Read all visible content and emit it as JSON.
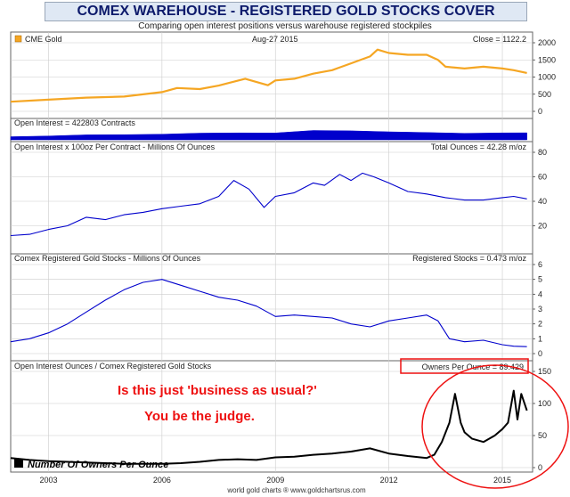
{
  "header": {
    "title": "COMEX WAREHOUSE - REGISTERED GOLD STOCKS COVER",
    "subtitle": "Comparing open interest positions versus warehouse registered stockpiles"
  },
  "footer": {
    "credit": "world gold charts ® www.goldchartsrus.com"
  },
  "colors": {
    "gold": "#f5a623",
    "blue": "#0000cc",
    "black": "#000000",
    "red": "#ee1111",
    "grid": "#cccccc",
    "frame": "#666666"
  },
  "chart_data": [
    {
      "type": "line",
      "legend": "CME Gold",
      "date_label": "Aug-27 2015",
      "value_label": "Close = 1122.2",
      "ylim": [
        0,
        2000
      ],
      "yticks": [
        "0",
        "500",
        "1000",
        "1500",
        "2000"
      ],
      "x": [
        2002.0,
        2003.0,
        2004.0,
        2005.0,
        2006.0,
        2006.4,
        2007.0,
        2007.5,
        2008.2,
        2008.8,
        2009.0,
        2009.5,
        2010.0,
        2010.5,
        2011.0,
        2011.5,
        2011.7,
        2012.0,
        2012.5,
        2013.0,
        2013.3,
        2013.5,
        2014.0,
        2014.5,
        2015.0,
        2015.3,
        2015.65
      ],
      "values": [
        280,
        340,
        400,
        430,
        560,
        680,
        650,
        750,
        950,
        760,
        900,
        950,
        1100,
        1200,
        1400,
        1600,
        1800,
        1700,
        1650,
        1650,
        1500,
        1300,
        1250,
        1300,
        1250,
        1200,
        1120
      ]
    },
    {
      "type": "area",
      "legend": "Open Interest = 422803 Contracts",
      "x": [
        2002.0,
        2003.0,
        2004.0,
        2005.0,
        2006.0,
        2007.0,
        2008.0,
        2009.0,
        2010.0,
        2011.0,
        2012.0,
        2013.0,
        2014.0,
        2015.0,
        2015.65
      ],
      "values": [
        190000,
        230000,
        300000,
        310000,
        340000,
        400000,
        420000,
        410000,
        560000,
        540000,
        480000,
        440000,
        390000,
        420000,
        422803
      ],
      "ylim": [
        0,
        750000
      ]
    },
    {
      "type": "line",
      "legend": "Open Interest x 100oz Per Contract - Millions Of Ounces",
      "value_label": "Total Ounces = 42.28 m/oz",
      "ylim": [
        0,
        80
      ],
      "yticks": [
        "20",
        "40",
        "60",
        "80"
      ],
      "x": [
        2002.0,
        2002.5,
        2003.0,
        2003.5,
        2004.0,
        2004.5,
        2005.0,
        2005.5,
        2006.0,
        2006.5,
        2007.0,
        2007.5,
        2007.9,
        2008.3,
        2008.7,
        2009.0,
        2009.5,
        2010.0,
        2010.3,
        2010.7,
        2011.0,
        2011.3,
        2011.6,
        2012.0,
        2012.5,
        2013.0,
        2013.5,
        2014.0,
        2014.5,
        2015.0,
        2015.3,
        2015.65
      ],
      "values": [
        12,
        13,
        17,
        20,
        27,
        25,
        29,
        31,
        34,
        36,
        38,
        44,
        57,
        50,
        35,
        44,
        47,
        55,
        53,
        62,
        57,
        63,
        60,
        55,
        48,
        46,
        43,
        41,
        41,
        43,
        44,
        42
      ]
    },
    {
      "type": "line",
      "legend": "Comex Registered Gold Stocks - Millions Of Ounces",
      "value_label": "Registered Stocks = 0.473 m/oz",
      "ylim": [
        0,
        6
      ],
      "yticks": [
        "0",
        "1",
        "2",
        "3",
        "4",
        "5",
        "6"
      ],
      "x": [
        2002.0,
        2002.5,
        2003.0,
        2003.5,
        2004.0,
        2004.5,
        2005.0,
        2005.5,
        2006.0,
        2006.5,
        2007.0,
        2007.5,
        2008.0,
        2008.5,
        2009.0,
        2009.5,
        2010.0,
        2010.5,
        2011.0,
        2011.5,
        2012.0,
        2012.5,
        2013.0,
        2013.3,
        2013.6,
        2014.0,
        2014.5,
        2015.0,
        2015.3,
        2015.65
      ],
      "values": [
        0.8,
        1.0,
        1.4,
        2.0,
        2.8,
        3.6,
        4.3,
        4.8,
        5.0,
        4.6,
        4.2,
        3.8,
        3.6,
        3.2,
        2.5,
        2.6,
        2.5,
        2.4,
        2.0,
        1.8,
        2.2,
        2.4,
        2.6,
        2.2,
        1.0,
        0.8,
        0.9,
        0.6,
        0.5,
        0.47
      ]
    },
    {
      "type": "line",
      "legend": "Open Interest Ounces / Comex Registered Gold Stocks",
      "value_label": "Owners Per Ounce = 89.429",
      "series_label": "Number Of Owners Per Ounce",
      "ylim": [
        0,
        150
      ],
      "yticks": [
        "0",
        "50",
        "100",
        "150"
      ],
      "x": [
        2002.0,
        2002.5,
        2003.0,
        2003.5,
        2004.0,
        2004.5,
        2005.0,
        2005.5,
        2006.0,
        2006.5,
        2007.0,
        2007.5,
        2008.0,
        2008.5,
        2009.0,
        2009.5,
        2010.0,
        2010.5,
        2011.0,
        2011.5,
        2012.0,
        2012.5,
        2013.0,
        2013.2,
        2013.4,
        2013.6,
        2013.75,
        2013.9,
        2014.0,
        2014.2,
        2014.5,
        2014.8,
        2015.0,
        2015.15,
        2015.3,
        2015.4,
        2015.5,
        2015.65
      ],
      "values": [
        15,
        12,
        10,
        9,
        8,
        7,
        6,
        6,
        6,
        7,
        9,
        12,
        13,
        12,
        16,
        17,
        20,
        22,
        25,
        30,
        22,
        18,
        15,
        20,
        40,
        70,
        115,
        70,
        55,
        45,
        40,
        50,
        60,
        70,
        120,
        75,
        115,
        89
      ],
      "annotations": [
        "Is this just 'business as usual?'",
        "You be the judge."
      ]
    }
  ],
  "x_axis": {
    "ticks": [
      "2003",
      "2006",
      "2009",
      "2012",
      "2015"
    ],
    "values": [
      2003,
      2006,
      2009,
      2012,
      2015
    ],
    "xlim": [
      2002.0,
      2015.8
    ]
  }
}
